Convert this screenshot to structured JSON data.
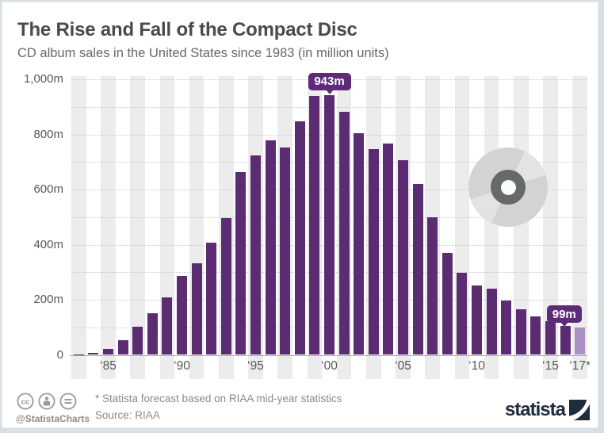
{
  "header": {
    "title": "The Rise and Fall of the Compact Disc",
    "subtitle": "CD album sales in the United States since 1983 (in million units)"
  },
  "chart_data": {
    "type": "bar",
    "title": "The Rise and Fall of the Compact Disc",
    "subtitle": "CD album sales in the United States since 1983 (in million units)",
    "unit": "million units",
    "ylim": [
      0,
      1000
    ],
    "grid": "dotted horizontal every 100m, alternating vertical year stripes",
    "legend": "none",
    "years": [
      1983,
      1984,
      1985,
      1986,
      1987,
      1988,
      1989,
      1990,
      1991,
      1992,
      1993,
      1994,
      1995,
      1996,
      1997,
      1998,
      1999,
      2000,
      2001,
      2002,
      2003,
      2004,
      2005,
      2006,
      2007,
      2008,
      2009,
      2010,
      2011,
      2012,
      2013,
      2014,
      2015,
      2016,
      2017
    ],
    "values": [
      0.8,
      5.8,
      22.6,
      53,
      102.1,
      149.7,
      207.2,
      286.5,
      333.3,
      407.5,
      495.4,
      662.1,
      722.9,
      778.9,
      753.1,
      847,
      938.9,
      942.5,
      881.9,
      803.3,
      746,
      767,
      705.4,
      619.7,
      499.7,
      368.4,
      296.6,
      253,
      240.8,
      198.2,
      165.4,
      140.8,
      122.9,
      105.3,
      99
    ],
    "forecast_years": [
      2017
    ],
    "yticks": [
      {
        "label": "0",
        "value": 0
      },
      {
        "label": "200m",
        "value": 200
      },
      {
        "label": "400m",
        "value": 400
      },
      {
        "label": "600m",
        "value": 600
      },
      {
        "label": "800m",
        "value": 800
      },
      {
        "label": "1,000m",
        "value": 1000
      }
    ],
    "xticks": [
      {
        "label": "‘85",
        "year": 1985
      },
      {
        "label": "‘90",
        "year": 1990
      },
      {
        "label": "‘95",
        "year": 1995
      },
      {
        "label": "‘00",
        "year": 2000
      },
      {
        "label": "‘05",
        "year": 2005
      },
      {
        "label": "‘10",
        "year": 2010
      },
      {
        "label": "‘15",
        "year": 2015
      },
      {
        "label": "‘17*",
        "year": 2017
      }
    ],
    "annotations": [
      {
        "label": "943m",
        "year": 2000
      },
      {
        "label": "99m",
        "year": 2017
      }
    ],
    "colors": {
      "bar": "#5b2c72",
      "bar_forecast": "#a98fc4",
      "callout_bg": "#5e2b78",
      "callout_text": "#ffffff",
      "stripe": "#ececec"
    }
  },
  "footer": {
    "license_icons": [
      "cc-icon",
      "attribution-person-icon",
      "equals-icon"
    ],
    "handle": "@StatistaCharts",
    "footnote": "* Statista forecast based on RIAA mid-year statistics",
    "source": "Source: RIAA",
    "brand": "statista"
  }
}
